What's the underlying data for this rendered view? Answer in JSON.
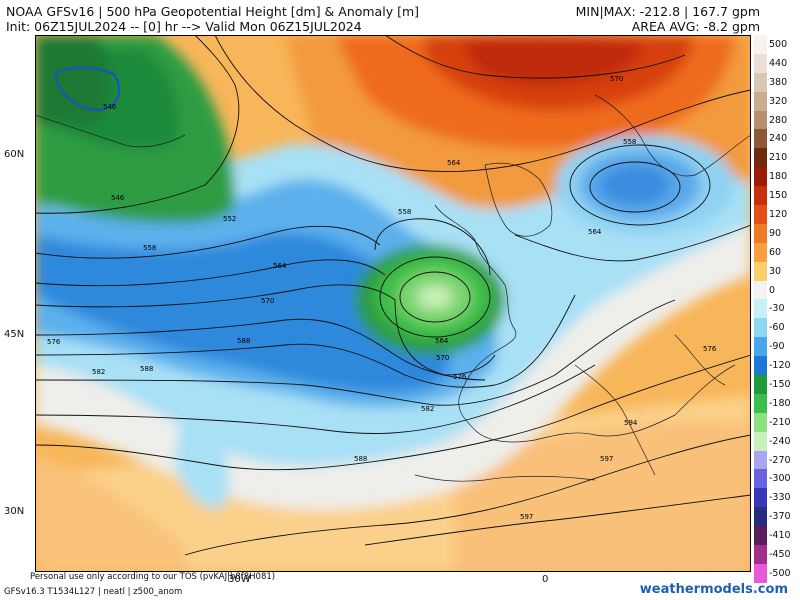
{
  "header": {
    "line1": "NOAA GFSv16 | 500 hPa Geopotential Height [dm] & Anomaly [m]",
    "line2": "Init: 06Z15JUL2024 -- [0] hr --> Valid Mon 06Z15JUL2024",
    "minmax": "MIN|MAX: -212.8 | 167.7 gpm",
    "area_avg": "AREA AVG: -8.2 gpm"
  },
  "lat_labels": [
    "60N",
    "45N",
    "30N"
  ],
  "lon_labels": [
    "30W",
    "0"
  ],
  "footer": {
    "tos": "Personal use only according to our TOS (pvKAJ|b8f8H081)",
    "model_info": "GFSv16.3 T1534L127 | neatl | z500_anom",
    "site": "weathermodels.com"
  },
  "contour_labels": [
    "546",
    "546",
    "552",
    "558",
    "564",
    "570",
    "576",
    "582",
    "588",
    "594",
    "597",
    "597",
    "558",
    "564",
    "570",
    "576",
    "582",
    "588",
    "564",
    "558",
    "564",
    "570",
    "576",
    "588"
  ],
  "colorbar": [
    {
      "label": "500",
      "color": "#f7f2ee"
    },
    {
      "label": "440",
      "color": "#ebe0d6"
    },
    {
      "label": "380",
      "color": "#d9c7b5"
    },
    {
      "label": "320",
      "color": "#c8ad92"
    },
    {
      "label": "280",
      "color": "#b48f70"
    },
    {
      "label": "240",
      "color": "#8e5a36"
    },
    {
      "label": "210",
      "color": "#6e2a10"
    },
    {
      "label": "180",
      "color": "#9b1a08"
    },
    {
      "label": "150",
      "color": "#c8300a"
    },
    {
      "label": "120",
      "color": "#e44f14"
    },
    {
      "label": "90",
      "color": "#f07a28"
    },
    {
      "label": "60",
      "color": "#f8a040"
    },
    {
      "label": "30",
      "color": "#fbd06a"
    },
    {
      "label": "0",
      "color": "#f4f3ef"
    },
    {
      "label": "-30",
      "color": "#c8f0f8"
    },
    {
      "label": "-60",
      "color": "#8fd8f2"
    },
    {
      "label": "-90",
      "color": "#4aa6ea"
    },
    {
      "label": "-120",
      "color": "#1c78d8"
    },
    {
      "label": "-150",
      "color": "#1e9a3a"
    },
    {
      "label": "-180",
      "color": "#3cbe4a"
    },
    {
      "label": "-210",
      "color": "#8ee07c"
    },
    {
      "label": "-240",
      "color": "#c8f0b8"
    },
    {
      "label": "-270",
      "color": "#a9a6f0"
    },
    {
      "label": "-300",
      "color": "#6a63e0"
    },
    {
      "label": "-330",
      "color": "#3a35b8"
    },
    {
      "label": "-370",
      "color": "#2a2a80"
    },
    {
      "label": "-410",
      "color": "#5a1f5a"
    },
    {
      "label": "-450",
      "color": "#a0308a"
    },
    {
      "label": "-500",
      "color": "#e85ad8"
    }
  ]
}
